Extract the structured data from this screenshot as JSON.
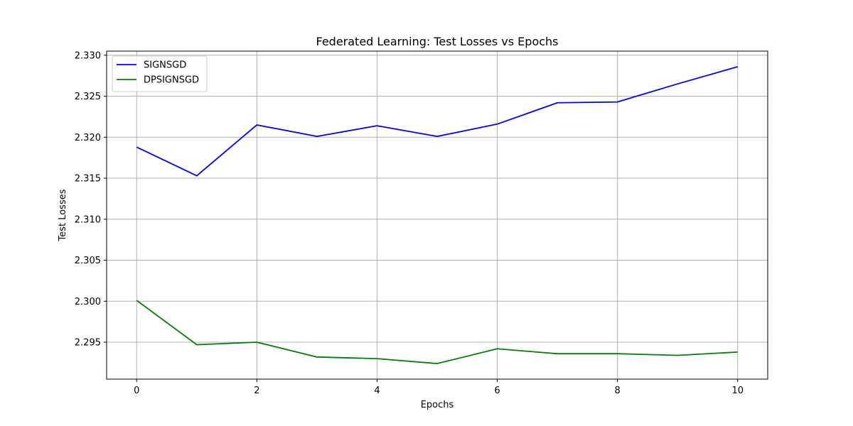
{
  "chart_data": {
    "type": "line",
    "title": "Federated Learning: Test Losses vs Epochs",
    "xlabel": "Epochs",
    "ylabel": "Test Losses",
    "xlim": [
      -0.5,
      10.5
    ],
    "ylim": [
      2.2905,
      2.3305
    ],
    "xticks": [
      0,
      2,
      4,
      6,
      8,
      10
    ],
    "xtick_labels": [
      "0",
      "2",
      "4",
      "6",
      "8",
      "10"
    ],
    "yticks": [
      2.295,
      2.3,
      2.305,
      2.31,
      2.315,
      2.32,
      2.325,
      2.33
    ],
    "ytick_labels": [
      "2.295",
      "2.300",
      "2.305",
      "2.310",
      "2.315",
      "2.320",
      "2.325",
      "2.330"
    ],
    "grid": true,
    "legend_position": "top-left",
    "x": [
      0,
      1,
      2,
      3,
      4,
      5,
      6,
      7,
      8,
      9,
      10
    ],
    "series": [
      {
        "name": "SIGNSGD",
        "color": "#0000ff",
        "values": [
          2.3188,
          2.3153,
          2.3215,
          2.3201,
          2.3214,
          2.3201,
          2.3216,
          2.3242,
          2.3243,
          2.3265,
          2.3286
        ]
      },
      {
        "name": "DPSIGNSGD",
        "color": "#008000",
        "values": [
          2.3001,
          2.2947,
          2.295,
          2.2932,
          2.293,
          2.2924,
          2.2942,
          2.2936,
          2.2936,
          2.2934,
          2.2938
        ]
      }
    ]
  }
}
